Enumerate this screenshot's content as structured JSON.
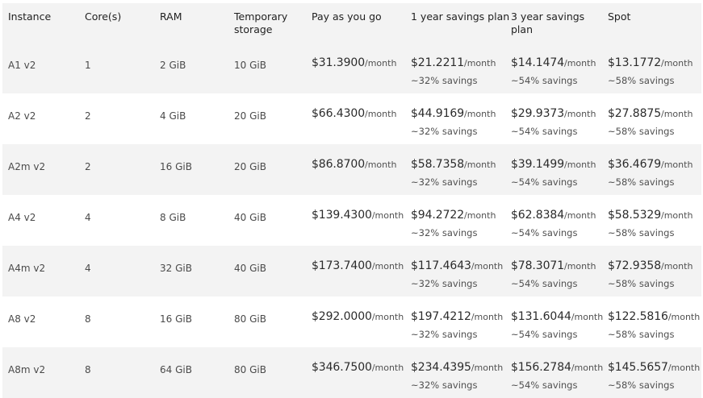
{
  "headers": [
    "Instance",
    "Core(s)",
    "RAM",
    "Temporary storage",
    "Pay as you go",
    "1 year savings plan",
    "3 year savings plan",
    "Spot"
  ],
  "per_month": "/month",
  "rows": [
    {
      "instance": "A1 v2",
      "cores": "1",
      "ram": "2 GiB",
      "storage": "10 GiB",
      "payg": "$31.3900",
      "y1": "$21.2211",
      "y1_sav": "~32% savings",
      "y3": "$14.1474",
      "y3_sav": "~54% savings",
      "spot": "$13.1772",
      "spot_sav": "~58% savings"
    },
    {
      "instance": "A2 v2",
      "cores": "2",
      "ram": "4 GiB",
      "storage": "20 GiB",
      "payg": "$66.4300",
      "y1": "$44.9169",
      "y1_sav": "~32% savings",
      "y3": "$29.9373",
      "y3_sav": "~54% savings",
      "spot": "$27.8875",
      "spot_sav": "~58% savings"
    },
    {
      "instance": "A2m v2",
      "cores": "2",
      "ram": "16 GiB",
      "storage": "20 GiB",
      "payg": "$86.8700",
      "y1": "$58.7358",
      "y1_sav": "~32% savings",
      "y3": "$39.1499",
      "y3_sav": "~54% savings",
      "spot": "$36.4679",
      "spot_sav": "~58% savings"
    },
    {
      "instance": "A4 v2",
      "cores": "4",
      "ram": "8 GiB",
      "storage": "40 GiB",
      "payg": "$139.4300",
      "y1": "$94.2722",
      "y1_sav": "~32% savings",
      "y3": "$62.8384",
      "y3_sav": "~54% savings",
      "spot": "$58.5329",
      "spot_sav": "~58% savings"
    },
    {
      "instance": "A4m v2",
      "cores": "4",
      "ram": "32 GiB",
      "storage": "40 GiB",
      "payg": "$173.7400",
      "y1": "$117.4643",
      "y1_sav": "~32% savings",
      "y3": "$78.3071",
      "y3_sav": "~54% savings",
      "spot": "$72.9358",
      "spot_sav": "~58% savings"
    },
    {
      "instance": "A8 v2",
      "cores": "8",
      "ram": "16 GiB",
      "storage": "80 GiB",
      "payg": "$292.0000",
      "y1": "$197.4212",
      "y1_sav": "~32% savings",
      "y3": "$131.6044",
      "y3_sav": "~54% savings",
      "spot": "$122.5816",
      "spot_sav": "~58% savings"
    },
    {
      "instance": "A8m v2",
      "cores": "8",
      "ram": "64 GiB",
      "storage": "80 GiB",
      "payg": "$346.7500",
      "y1": "$234.4395",
      "y1_sav": "~32% savings",
      "y3": "$156.2784",
      "y3_sav": "~54% savings",
      "spot": "$145.5657",
      "spot_sav": "~58% savings"
    }
  ]
}
